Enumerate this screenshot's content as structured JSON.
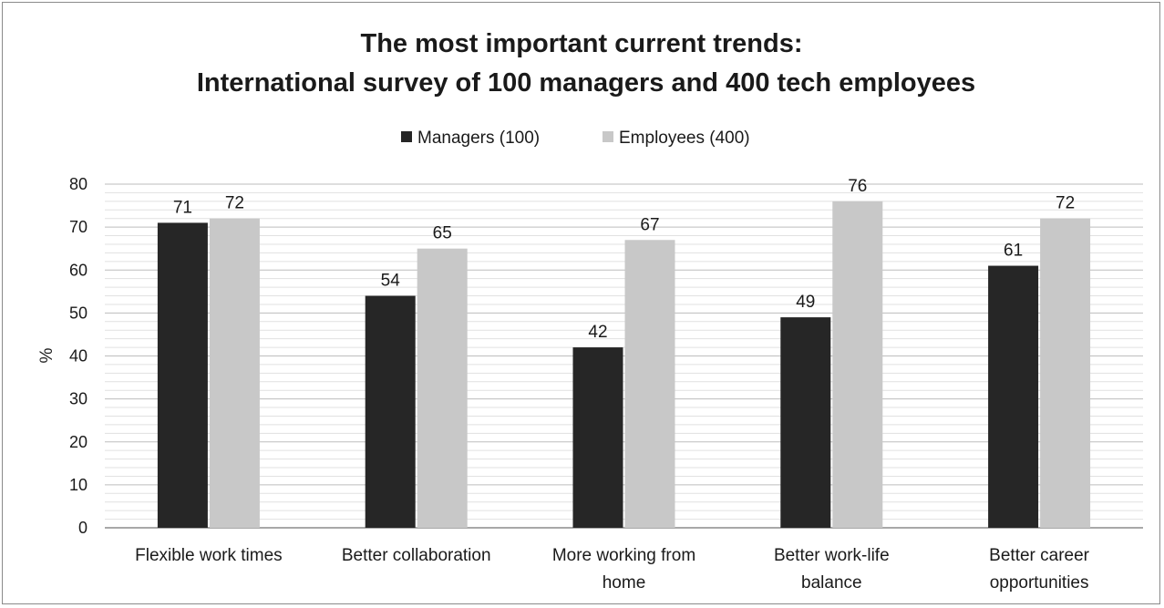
{
  "chart_data": {
    "type": "bar",
    "title": "The most important current trends:",
    "subtitle": "International survey of 100 managers and 400 tech employees",
    "xlabel": "",
    "ylabel": "%",
    "ylim": [
      0,
      80
    ],
    "yticks": [
      "0",
      "10",
      "20",
      "30",
      "40",
      "50",
      "60",
      "70",
      "80"
    ],
    "grid": true,
    "legend_position": "top",
    "categories": [
      [
        "Flexible work times"
      ],
      [
        "Better collaboration"
      ],
      [
        "More working from",
        "home"
      ],
      [
        "Better work-life",
        "balance"
      ],
      [
        "Better career",
        "opportunities"
      ]
    ],
    "series": [
      {
        "name": "Managers (100)",
        "color": "#262626",
        "values": [
          71,
          54,
          42,
          49,
          61
        ]
      },
      {
        "name": "Employees (400)",
        "color": "#c8c8c8",
        "values": [
          72,
          65,
          67,
          76,
          72
        ]
      }
    ]
  }
}
